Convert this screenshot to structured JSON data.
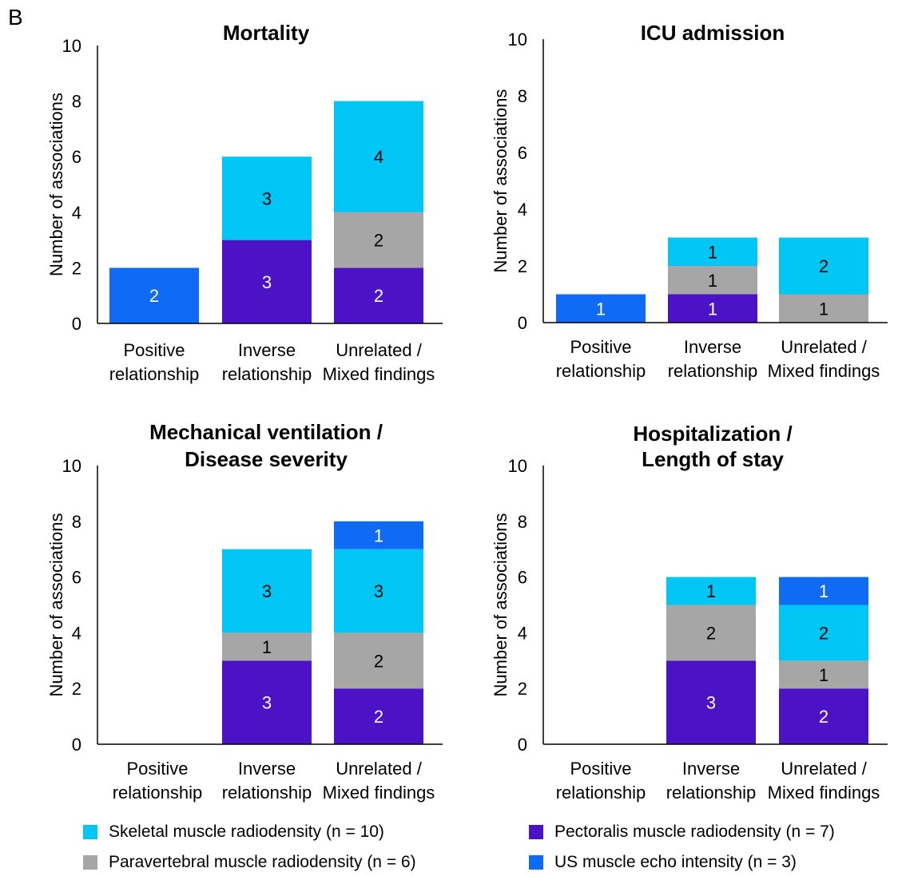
{
  "figure_label": "B",
  "colors": {
    "skeletal": "#00C6F5",
    "paravertebral": "#A6A6A6",
    "pectoralis": "#4B12C6",
    "us": "#0F6BF4"
  },
  "legend": [
    {
      "key": "skeletal",
      "label": "Skeletal muscle radiodensity (n = 10)"
    },
    {
      "key": "pectoralis",
      "label": "Pectoralis muscle radiodensity (n = 7)"
    },
    {
      "key": "paravertebral",
      "label": "Paravertebral muscle radiodensity (n = 6)"
    },
    {
      "key": "us",
      "label": "US muscle echo intensity (n = 3)"
    }
  ],
  "chart_data": [
    {
      "type": "bar",
      "stacked": true,
      "title": [
        "Mortality"
      ],
      "ylabel": "Number of associations",
      "ylim": [
        0,
        10
      ],
      "yticks": [
        0,
        2,
        4,
        6,
        8,
        10
      ],
      "categories": [
        [
          "Positive",
          "relationship"
        ],
        [
          "Inverse",
          "relationship"
        ],
        [
          "Unrelated /",
          "Mixed findings"
        ]
      ],
      "series": [
        {
          "key": "pectoralis",
          "values": [
            0,
            3,
            2
          ]
        },
        {
          "key": "paravertebral",
          "values": [
            0,
            0,
            2
          ]
        },
        {
          "key": "skeletal",
          "values": [
            0,
            3,
            4
          ]
        },
        {
          "key": "us",
          "values": [
            2,
            0,
            0
          ]
        }
      ]
    },
    {
      "type": "bar",
      "stacked": true,
      "title": [
        "ICU admission"
      ],
      "ylabel": "Number of associations",
      "ylim": [
        0,
        10
      ],
      "yticks": [
        0,
        2,
        4,
        6,
        8,
        10
      ],
      "categories": [
        [
          "Positive",
          "relationship"
        ],
        [
          "Inverse",
          "relationship"
        ],
        [
          "Unrelated /",
          "Mixed findings"
        ]
      ],
      "series": [
        {
          "key": "pectoralis",
          "values": [
            0,
            1,
            0
          ]
        },
        {
          "key": "paravertebral",
          "values": [
            0,
            1,
            1
          ]
        },
        {
          "key": "skeletal",
          "values": [
            0,
            1,
            2
          ]
        },
        {
          "key": "us",
          "values": [
            1,
            0,
            0
          ]
        }
      ]
    },
    {
      "type": "bar",
      "stacked": true,
      "title": [
        "Mechanical ventilation /",
        "Disease severity"
      ],
      "ylabel": "Number of associations",
      "ylim": [
        0,
        10
      ],
      "yticks": [
        0,
        2,
        4,
        6,
        8,
        10
      ],
      "categories": [
        [
          "Positive",
          "relationship"
        ],
        [
          "Inverse",
          "relationship"
        ],
        [
          "Unrelated /",
          "Mixed findings"
        ]
      ],
      "series": [
        {
          "key": "pectoralis",
          "values": [
            0,
            3,
            2
          ]
        },
        {
          "key": "paravertebral",
          "values": [
            0,
            1,
            2
          ]
        },
        {
          "key": "skeletal",
          "values": [
            0,
            3,
            3
          ]
        },
        {
          "key": "us",
          "values": [
            0,
            0,
            1
          ]
        }
      ]
    },
    {
      "type": "bar",
      "stacked": true,
      "title": [
        "Hospitalization /",
        "Length of stay"
      ],
      "ylabel": "Number of associations",
      "ylim": [
        0,
        10
      ],
      "yticks": [
        0,
        2,
        4,
        6,
        8,
        10
      ],
      "categories": [
        [
          "Positive",
          "relationship"
        ],
        [
          "Inverse",
          "relationship"
        ],
        [
          "Unrelated /",
          "Mixed findings"
        ]
      ],
      "series": [
        {
          "key": "pectoralis",
          "values": [
            0,
            3,
            2
          ]
        },
        {
          "key": "paravertebral",
          "values": [
            0,
            2,
            1
          ]
        },
        {
          "key": "skeletal",
          "values": [
            0,
            1,
            2
          ]
        },
        {
          "key": "us",
          "values": [
            0,
            0,
            1
          ]
        }
      ]
    }
  ]
}
